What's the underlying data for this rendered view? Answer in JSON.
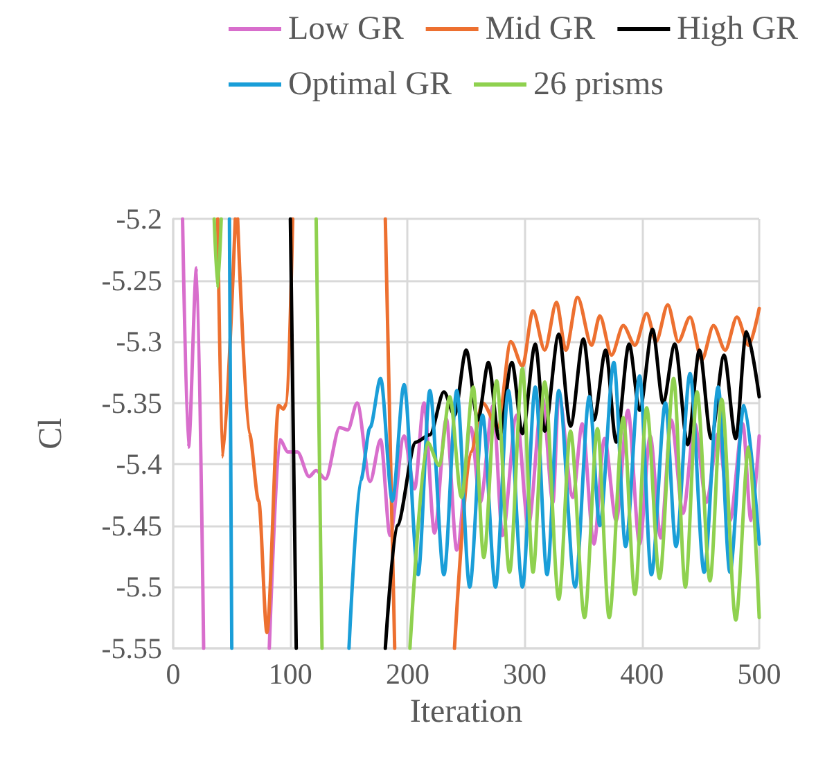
{
  "chart_data": {
    "type": "line",
    "xlabel": "Iteration",
    "ylabel": "Cl",
    "xlim": [
      0,
      500
    ],
    "xticks": [
      0,
      100,
      200,
      300,
      400,
      500
    ],
    "ylim": [
      -5.55,
      -5.2
    ],
    "yticks": [
      -5.55,
      -5.5,
      -5.45,
      -5.4,
      -5.35,
      -5.3,
      -5.25,
      -5.2
    ],
    "grid": true,
    "legend": "top",
    "marker": "none",
    "line_style": "solid",
    "series": [
      {
        "name": "Low GR",
        "color": "#d86ecc",
        "x": [
          8,
          13,
          20,
          26,
          50,
          82,
          91,
          98,
          106,
          116,
          122,
          130,
          142,
          149,
          157,
          168,
          177,
          185,
          197,
          206,
          214,
          223,
          233,
          242,
          254,
          262,
          273,
          281,
          293,
          303,
          315,
          324,
          329,
          341,
          349,
          359,
          368,
          378,
          388,
          398,
          407,
          416,
          425,
          435,
          445,
          455,
          465,
          475,
          486,
          493,
          500
        ],
        "values": [
          -5.2,
          -5.386,
          -5.24,
          -5.55,
          null,
          -5.55,
          -5.38,
          -5.39,
          -5.39,
          -5.41,
          -5.405,
          -5.412,
          -5.37,
          -5.372,
          -5.35,
          -5.414,
          -5.38,
          -5.458,
          -5.377,
          -5.42,
          -5.35,
          -5.456,
          -5.363,
          -5.47,
          -5.37,
          -5.431,
          -5.352,
          -5.458,
          -5.36,
          -5.45,
          -5.345,
          -5.431,
          -5.343,
          -5.427,
          -5.367,
          -5.465,
          -5.379,
          -5.446,
          -5.356,
          -5.465,
          -5.377,
          -5.46,
          -5.364,
          -5.44,
          -5.367,
          -5.431,
          -5.375,
          -5.446,
          -5.367,
          -5.446,
          -5.377
        ]
      },
      {
        "name": "Mid GR",
        "color": "#ed7030",
        "x": [
          38,
          42,
          53,
          54,
          55,
          65,
          73,
          80,
          90,
          94,
          97,
          102,
          140,
          181,
          189,
          215,
          240,
          254,
          264,
          277,
          288,
          298,
          307,
          317,
          327,
          335,
          345,
          357,
          364,
          374,
          384,
          394,
          404,
          412,
          422,
          431,
          441,
          451,
          461,
          471,
          481,
          491,
          500
        ],
        "values": [
          -5.2,
          -5.394,
          -5.2,
          null,
          -5.2,
          -5.375,
          -5.43,
          -5.537,
          -5.352,
          -5.355,
          -5.35,
          -5.2,
          null,
          -5.2,
          -5.55,
          null,
          -5.55,
          -5.39,
          -5.35,
          -5.37,
          -5.3,
          -5.32,
          -5.275,
          -5.307,
          -5.268,
          -5.307,
          -5.264,
          -5.303,
          -5.279,
          -5.311,
          -5.287,
          -5.303,
          -5.277,
          -5.3,
          -5.27,
          -5.3,
          -5.28,
          -5.315,
          -5.287,
          -5.307,
          -5.28,
          -5.303,
          -5.273
        ]
      },
      {
        "name": "High GR",
        "color": "#000000",
        "x": [
          100,
          105,
          140,
          181,
          191,
          207,
          219,
          231,
          240,
          250,
          260,
          269,
          278,
          289,
          298,
          309,
          317,
          329,
          339,
          350,
          359,
          369,
          378,
          389,
          398,
          409,
          418,
          428,
          439,
          449,
          459,
          470,
          480,
          489,
          500
        ],
        "values": [
          -5.2,
          -5.55,
          null,
          -5.55,
          -5.45,
          -5.382,
          -5.376,
          -5.341,
          -5.36,
          -5.307,
          -5.364,
          -5.317,
          -5.379,
          -5.317,
          -5.375,
          -5.302,
          -5.373,
          -5.294,
          -5.369,
          -5.298,
          -5.364,
          -5.307,
          -5.382,
          -5.302,
          -5.356,
          -5.29,
          -5.35,
          -5.302,
          -5.384,
          -5.307,
          -5.379,
          -5.311,
          -5.379,
          -5.292,
          -5.345
        ]
      },
      {
        "name": "Optimal GR",
        "color": "#1a9ed8",
        "x": [
          48,
          50,
          100,
          150,
          160,
          168,
          177,
          187,
          197,
          209,
          219,
          231,
          242,
          253,
          264,
          275,
          286,
          298,
          309,
          319,
          329,
          343,
          355,
          364,
          376,
          386,
          398,
          408,
          420,
          429,
          441,
          453,
          465,
          475,
          487,
          500
        ],
        "values": [
          -5.2,
          -5.55,
          null,
          -5.55,
          -5.413,
          -5.37,
          -5.33,
          -5.43,
          -5.335,
          -5.49,
          -5.34,
          -5.49,
          -5.34,
          -5.5,
          -5.36,
          -5.5,
          -5.34,
          -5.5,
          -5.337,
          -5.49,
          -5.34,
          -5.5,
          -5.345,
          -5.45,
          -5.317,
          -5.467,
          -5.328,
          -5.49,
          -5.35,
          -5.467,
          -5.326,
          -5.488,
          -5.337,
          -5.488,
          -5.352,
          -5.465
        ]
      },
      {
        "name": "26 prisms",
        "color": "#8fd14f",
        "x": [
          35,
          38,
          41,
          80,
          122,
          127,
          165,
          202,
          217,
          227,
          236,
          246,
          256,
          265,
          276,
          287,
          298,
          307,
          317,
          329,
          339,
          351,
          362,
          372,
          384,
          394,
          404,
          415,
          427,
          437,
          447,
          458,
          468,
          480,
          491,
          500
        ],
        "values": [
          -5.2,
          -5.256,
          -5.2,
          null,
          -5.2,
          -5.55,
          null,
          -5.55,
          -5.382,
          -5.401,
          -5.345,
          -5.427,
          -5.337,
          -5.476,
          -5.332,
          -5.488,
          -5.322,
          -5.488,
          -5.333,
          -5.51,
          -5.373,
          -5.525,
          -5.371,
          -5.525,
          -5.362,
          -5.506,
          -5.354,
          -5.493,
          -5.33,
          -5.5,
          -5.341,
          -5.495,
          -5.347,
          -5.527,
          -5.386,
          -5.525
        ]
      }
    ]
  }
}
